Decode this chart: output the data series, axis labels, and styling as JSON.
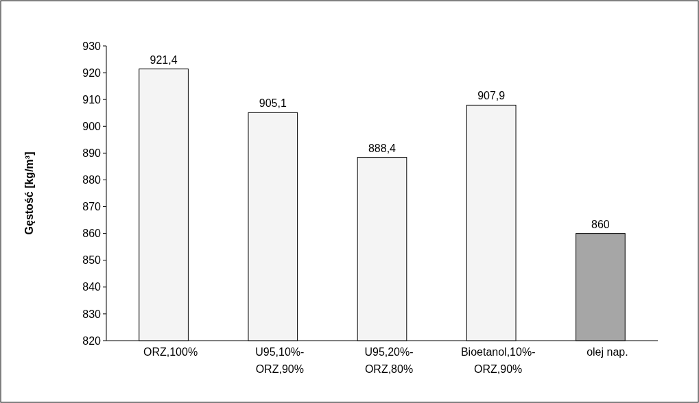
{
  "chart_data": {
    "type": "bar",
    "ylabel": "Gęstość [kg/m³]",
    "categories": [
      "ORZ,100%",
      "U95,10%-ORZ,90%",
      "U95,20%-ORZ,80%",
      "Bioetanol,10%-ORZ,90%",
      "olej nap."
    ],
    "values": [
      921.4,
      905.1,
      888.4,
      907.9,
      860
    ],
    "colors": [
      "#f4f4f4",
      "#f4f4f4",
      "#f4f4f4",
      "#f4f4f4",
      "#a6a6a6"
    ],
    "value_labels": [
      "921,4",
      "905,1",
      "888,4",
      "907,9",
      "860"
    ],
    "ylim": [
      820,
      930
    ],
    "yticks": [
      820,
      830,
      840,
      850,
      860,
      870,
      880,
      890,
      900,
      910,
      920,
      930
    ],
    "grid": false
  }
}
